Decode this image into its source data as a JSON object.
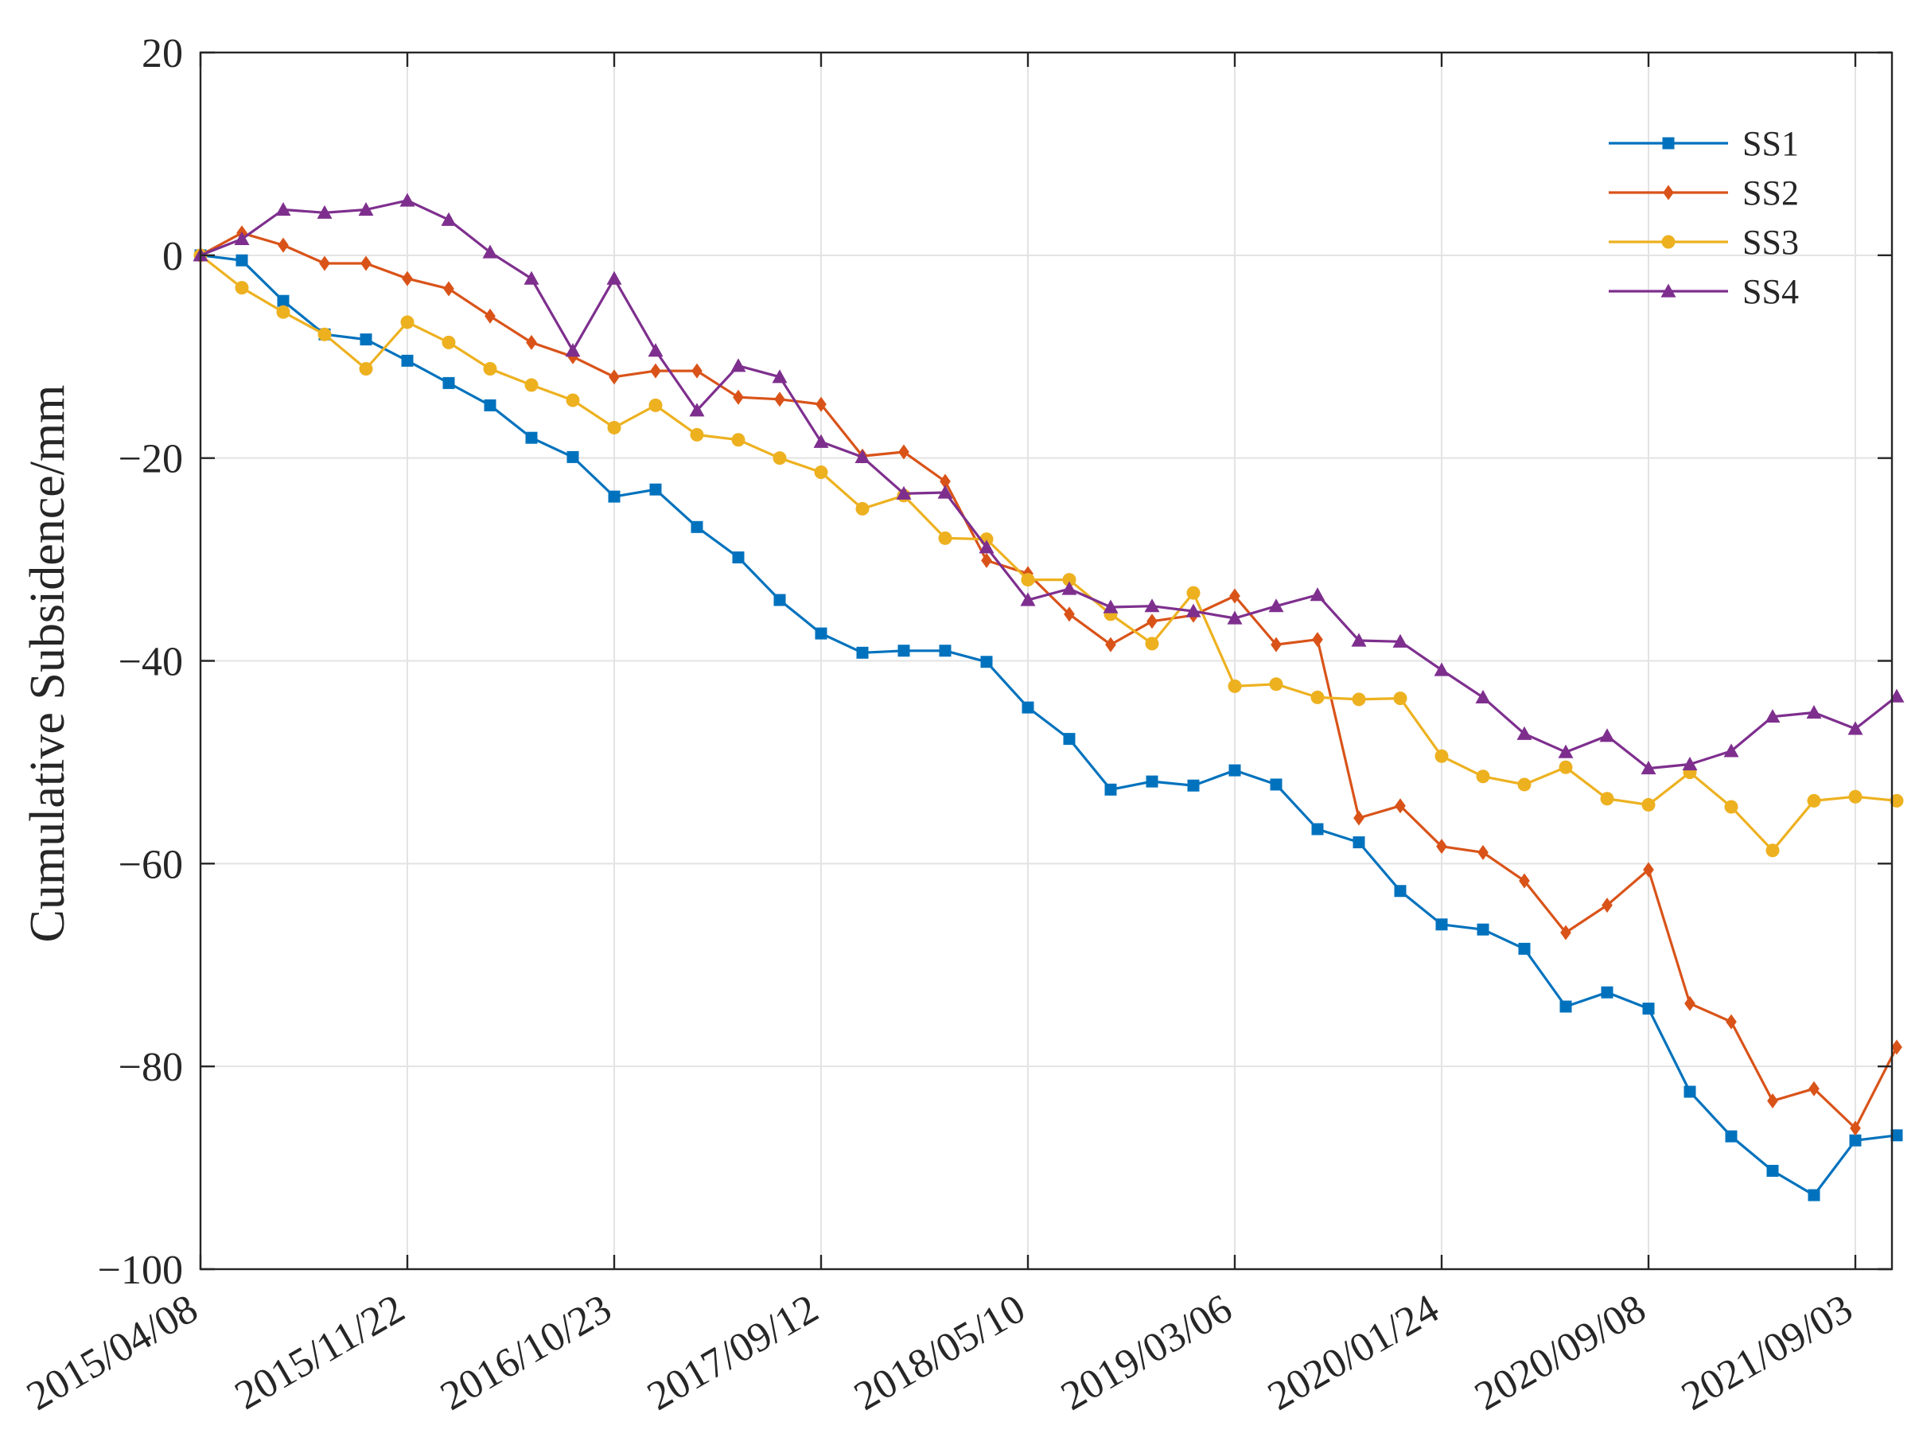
{
  "chart_data": {
    "type": "line",
    "title": "",
    "xlabel": "",
    "ylabel": "Cumulative Subsidence/mm",
    "ylim": [
      -100,
      20
    ],
    "yticks": [
      {
        "value": 20,
        "label": "20"
      },
      {
        "value": 0,
        "label": "0"
      },
      {
        "value": -20,
        "label": "−20"
      },
      {
        "value": -40,
        "label": "−40"
      },
      {
        "value": -60,
        "label": "−60"
      },
      {
        "value": -80,
        "label": "−80"
      },
      {
        "value": -100,
        "label": "−100"
      }
    ],
    "xlim": [
      0,
      41
    ],
    "xticks": [
      {
        "index": 0,
        "label": "2015/04/08"
      },
      {
        "index": 5,
        "label": "2015/11/22"
      },
      {
        "index": 10,
        "label": "2016/10/23"
      },
      {
        "index": 15,
        "label": "2017/09/12"
      },
      {
        "index": 20,
        "label": "2018/05/10"
      },
      {
        "index": 25,
        "label": "2019/03/06"
      },
      {
        "index": 30,
        "label": "2020/01/24"
      },
      {
        "index": 35,
        "label": "2020/09/08"
      },
      {
        "index": 40,
        "label": "2021/09/03"
      }
    ],
    "grid": true,
    "legend_position": "top-right",
    "series": [
      {
        "name": "SS1",
        "color": "#0072BD",
        "marker": "square",
        "values": [
          0,
          -0.5,
          -4.5,
          -7.8,
          -8.3,
          -10.4,
          -12.6,
          -14.8,
          -18.0,
          -19.9,
          -23.8,
          -23.1,
          -26.8,
          -29.8,
          -34.0,
          -37.3,
          -39.2,
          -39.0,
          -39.0,
          -40.1,
          -44.6,
          -47.7,
          -52.7,
          -51.9,
          -52.3,
          -50.8,
          -52.2,
          -56.6,
          -57.9,
          -62.7,
          -66.0,
          -66.5,
          -68.4,
          -74.1,
          -72.7,
          -74.3,
          -82.5,
          -86.9,
          -90.3,
          -92.7,
          -87.3,
          -86.8
        ]
      },
      {
        "name": "SS2",
        "color": "#D95319",
        "marker": "diamond",
        "values": [
          0,
          2.2,
          1.0,
          -0.8,
          -0.8,
          -2.3,
          -3.3,
          -6.0,
          -8.6,
          -10.0,
          -12.0,
          -11.4,
          -11.4,
          -14.0,
          -14.2,
          -14.7,
          -19.8,
          -19.4,
          -22.3,
          -30.1,
          -31.4,
          -35.4,
          -38.4,
          -36.1,
          -35.5,
          -33.6,
          -38.4,
          -37.9,
          -55.5,
          -54.3,
          -58.3,
          -58.9,
          -61.7,
          -66.8,
          -64.1,
          -60.6,
          -73.8,
          -75.6,
          -83.4,
          -82.2,
          -86.1,
          -78.1
        ]
      },
      {
        "name": "SS3",
        "color": "#EDB120",
        "marker": "circle",
        "values": [
          0,
          -3.2,
          -5.6,
          -7.8,
          -11.2,
          -6.6,
          -8.6,
          -11.2,
          -12.8,
          -14.3,
          -17.0,
          -14.8,
          -17.7,
          -18.2,
          -20.0,
          -21.4,
          -25.0,
          -23.7,
          -27.9,
          -28.0,
          -32.0,
          -32.0,
          -35.4,
          -38.3,
          -33.3,
          -42.5,
          -42.3,
          -43.6,
          -43.8,
          -43.7,
          -49.4,
          -51.4,
          -52.2,
          -50.5,
          -53.6,
          -54.2,
          -51.0,
          -54.4,
          -58.7,
          -53.8,
          -53.4,
          -53.8
        ]
      },
      {
        "name": "SS4",
        "color": "#7E2F8E",
        "marker": "triangle",
        "values": [
          0,
          1.6,
          4.5,
          4.2,
          4.5,
          5.4,
          3.5,
          0.3,
          -2.3,
          -9.4,
          -2.3,
          -9.4,
          -15.3,
          -10.9,
          -12.0,
          -18.4,
          -19.9,
          -23.5,
          -23.4,
          -28.8,
          -34.0,
          -32.9,
          -34.7,
          -34.6,
          -35.1,
          -35.8,
          -34.6,
          -33.5,
          -38.0,
          -38.1,
          -40.9,
          -43.6,
          -47.2,
          -49.0,
          -47.4,
          -50.6,
          -50.2,
          -48.9,
          -45.5,
          -45.1,
          -46.7,
          -43.5
        ]
      }
    ]
  }
}
